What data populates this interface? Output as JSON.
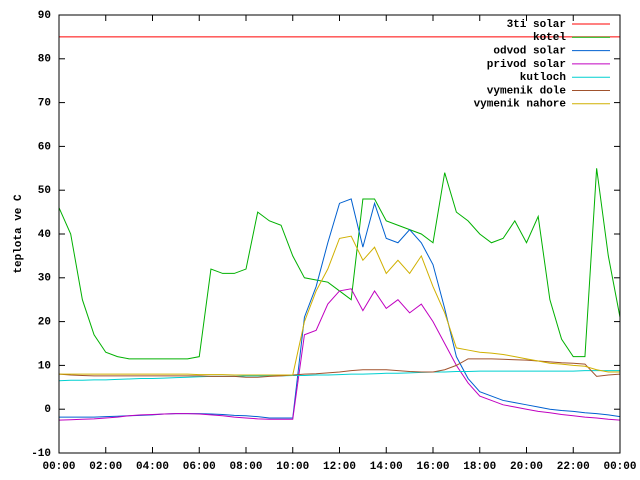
{
  "chart_data": {
    "type": "line",
    "y_label": "teplota ve C",
    "x": [
      0,
      0.5,
      1,
      1.5,
      2,
      2.5,
      3,
      3.5,
      4,
      4.5,
      5,
      5.5,
      6,
      6.5,
      7,
      7.5,
      8,
      8.5,
      9,
      9.5,
      10,
      10.5,
      11,
      11.5,
      12,
      12.5,
      13,
      13.5,
      14,
      14.5,
      15,
      15.5,
      16,
      16.5,
      17,
      17.5,
      18,
      18.5,
      19,
      19.5,
      20,
      20.5,
      21,
      21.5,
      22,
      22.5,
      23,
      23.5,
      24
    ],
    "xlim": [
      0,
      24
    ],
    "xticks": [
      {
        "value": 0,
        "label": "00:00"
      },
      {
        "value": 2,
        "label": "02:00"
      },
      {
        "value": 4,
        "label": "04:00"
      },
      {
        "value": 6,
        "label": "06:00"
      },
      {
        "value": 8,
        "label": "08:00"
      },
      {
        "value": 10,
        "label": "10:00"
      },
      {
        "value": 12,
        "label": "12:00"
      },
      {
        "value": 14,
        "label": "14:00"
      },
      {
        "value": 16,
        "label": "16:00"
      },
      {
        "value": 18,
        "label": "18:00"
      },
      {
        "value": 20,
        "label": "20:00"
      },
      {
        "value": 22,
        "label": "22:00"
      },
      {
        "value": 24,
        "label": "00:00"
      }
    ],
    "ylim": [
      -10,
      90
    ],
    "yticks": [
      -10,
      0,
      10,
      20,
      30,
      40,
      50,
      60,
      70,
      80,
      90
    ],
    "grid": false,
    "legend": "top-right",
    "series": [
      {
        "name": "3ti solar",
        "color": "#ff0000",
        "values": [
          85,
          85,
          85,
          85,
          85,
          85,
          85,
          85,
          85,
          85,
          85,
          85,
          85,
          85,
          85,
          85,
          85,
          85,
          85,
          85,
          85,
          85,
          85,
          85,
          85,
          85,
          85,
          85,
          85,
          85,
          85,
          85,
          85,
          85,
          85,
          85,
          85,
          85,
          85,
          85,
          85,
          85,
          85,
          85,
          85,
          85,
          85,
          85,
          85
        ]
      },
      {
        "name": "kotel",
        "color": "#00b000",
        "values": [
          46,
          40,
          25,
          17,
          13,
          12,
          11.5,
          11.5,
          11.5,
          11.5,
          11.5,
          11.5,
          12,
          32,
          31,
          31,
          32,
          45,
          43,
          42,
          35,
          30,
          29.5,
          29,
          27,
          25,
          48,
          48,
          43,
          42,
          41,
          40,
          38,
          54,
          45,
          43,
          40,
          38,
          39,
          43,
          38,
          44,
          25,
          16,
          12,
          12,
          55,
          35,
          21
        ]
      },
      {
        "name": "odvod solar",
        "color": "#0060d0",
        "values": [
          -1.8,
          -1.8,
          -1.8,
          -1.8,
          -1.7,
          -1.6,
          -1.5,
          -1.4,
          -1.3,
          -1.1,
          -1,
          -1,
          -1,
          -1.1,
          -1.2,
          -1.4,
          -1.5,
          -1.7,
          -2,
          -2,
          -2,
          21,
          28,
          38,
          47,
          48,
          37,
          47,
          39,
          38,
          41,
          38,
          33,
          23,
          12,
          7,
          4,
          3,
          2,
          1.5,
          1,
          0.5,
          0,
          -0.3,
          -0.5,
          -0.8,
          -1,
          -1.3,
          -1.7
        ]
      },
      {
        "name": "privod solar",
        "color": "#c000c0",
        "values": [
          -2.5,
          -2.4,
          -2.3,
          -2.2,
          -2,
          -1.8,
          -1.5,
          -1.3,
          -1.2,
          -1.1,
          -1,
          -1,
          -1.1,
          -1.3,
          -1.5,
          -1.8,
          -2,
          -2.2,
          -2.3,
          -2.3,
          -2.3,
          17,
          18,
          24,
          27,
          27.5,
          22.5,
          27,
          23,
          25,
          22,
          24,
          20,
          15,
          10,
          6,
          3,
          2,
          1,
          0.5,
          0,
          -0.5,
          -0.8,
          -1.2,
          -1.5,
          -1.8,
          -2,
          -2.3,
          -2.5
        ]
      },
      {
        "name": "kutloch",
        "color": "#00d0d0",
        "values": [
          6.5,
          6.6,
          6.6,
          6.7,
          6.7,
          6.8,
          6.9,
          7,
          7,
          7.1,
          7.2,
          7.3,
          7.4,
          7.5,
          7.5,
          7.5,
          7.6,
          7.6,
          7.6,
          7.6,
          7.7,
          7.7,
          7.8,
          7.8,
          7.9,
          8,
          8,
          8.1,
          8.2,
          8.2,
          8.3,
          8.4,
          8.5,
          8.5,
          8.6,
          8.6,
          8.7,
          8.7,
          8.7,
          8.7,
          8.7,
          8.7,
          8.7,
          8.7,
          8.7,
          8.8,
          8.8,
          8.8,
          8.8
        ]
      },
      {
        "name": "vymenik dole",
        "color": "#a0522d",
        "values": [
          8,
          7.8,
          7.7,
          7.6,
          7.6,
          7.6,
          7.6,
          7.6,
          7.6,
          7.6,
          7.6,
          7.6,
          7.6,
          7.5,
          7.5,
          7.5,
          7.3,
          7.3,
          7.5,
          7.6,
          7.8,
          8,
          8.1,
          8.3,
          8.5,
          8.8,
          9,
          9,
          9,
          8.8,
          8.6,
          8.5,
          8.5,
          9,
          10,
          11.5,
          11.5,
          11.5,
          11.4,
          11.3,
          11.2,
          11,
          10.8,
          10.6,
          10.5,
          10.3,
          7.5,
          7.8,
          8
        ]
      },
      {
        "name": "vymenik nahore",
        "color": "#d0b000",
        "values": [
          8,
          8,
          8,
          8,
          8,
          8,
          8,
          8,
          8,
          8,
          8,
          8,
          7.9,
          7.9,
          7.9,
          7.8,
          7.8,
          7.8,
          7.8,
          7.8,
          7.8,
          20,
          27,
          32,
          39,
          39.5,
          34,
          37,
          31,
          34,
          31,
          35,
          28,
          22,
          14,
          13.5,
          13,
          12.8,
          12.5,
          12,
          11.5,
          11,
          10.5,
          10.3,
          10,
          9.8,
          9,
          8.5,
          8.5
        ]
      }
    ]
  }
}
